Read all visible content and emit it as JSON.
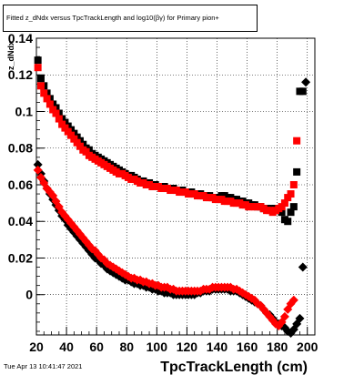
{
  "title": "Fitted z_dNdx versus TpcTrackLength and log10(βγ) for Primary pion+",
  "footer": {
    "timestamp": "Tue Apr 13 10:41:47 2021"
  },
  "colors": {
    "black_series": "#000000",
    "red_series": "#ff0000",
    "grid": "#000000"
  },
  "chart_data": {
    "type": "scatter",
    "title": "Fitted z_dNdx versus TpcTrackLength and log10(βγ) for Primary pion+",
    "xlabel": "TpcTrackLength (cm)",
    "ylabel": "z_dNdx",
    "xlim": [
      20,
      205
    ],
    "ylim": [
      -0.022,
      0.14
    ],
    "x_ticks": [
      20,
      40,
      60,
      80,
      100,
      120,
      140,
      160,
      180,
      200
    ],
    "x_tick_labels": [
      "20",
      "40",
      "60",
      "80",
      "100",
      "120",
      "140",
      "160",
      "180",
      "200"
    ],
    "y_ticks": [
      0,
      0.02,
      0.04,
      0.06,
      0.08,
      0.1,
      0.12,
      0.14
    ],
    "y_tick_labels": [
      "0",
      "0.02",
      "0.04",
      "0.06",
      "0.08",
      "0.1",
      "0.12",
      "0.14"
    ],
    "grid": true,
    "series": [
      {
        "marker": "square",
        "color": "#000000",
        "x": [
          21,
          23,
          25,
          27,
          29,
          31,
          33,
          35,
          37,
          39,
          41,
          43,
          45,
          47,
          49,
          51,
          53,
          55,
          57,
          59,
          61,
          63,
          65,
          67,
          69,
          71,
          73,
          75,
          77,
          79,
          81,
          83,
          85,
          87,
          89,
          91,
          93,
          95,
          97,
          99,
          101,
          103,
          105,
          107,
          109,
          111,
          113,
          115,
          117,
          119,
          121,
          123,
          125,
          127,
          129,
          131,
          133,
          135,
          137,
          139,
          141,
          143,
          145,
          147,
          149,
          151,
          153,
          155,
          157,
          159,
          161,
          163,
          165,
          167,
          169,
          171,
          173,
          175,
          177,
          179,
          181,
          183,
          185,
          187,
          189,
          191,
          193
        ],
        "y": [
          0.128,
          0.118,
          0.114,
          0.11,
          0.107,
          0.104,
          0.102,
          0.099,
          0.096,
          0.094,
          0.092,
          0.09,
          0.088,
          0.086,
          0.084,
          0.082,
          0.08,
          0.079,
          0.077,
          0.076,
          0.075,
          0.074,
          0.073,
          0.072,
          0.071,
          0.07,
          0.069,
          0.068,
          0.067,
          0.066,
          0.065,
          0.065,
          0.064,
          0.063,
          0.062,
          0.062,
          0.061,
          0.061,
          0.06,
          0.06,
          0.059,
          0.059,
          0.059,
          0.058,
          0.058,
          0.058,
          0.057,
          0.057,
          0.057,
          0.056,
          0.056,
          0.056,
          0.055,
          0.055,
          0.055,
          0.054,
          0.054,
          0.054,
          0.053,
          0.053,
          0.053,
          0.054,
          0.054,
          0.053,
          0.053,
          0.052,
          0.052,
          0.051,
          0.051,
          0.05,
          0.05,
          0.049,
          0.049,
          0.048,
          0.048,
          0.047,
          0.047,
          0.047,
          0.047,
          0.047,
          0.046,
          0.045,
          0.041,
          0.04,
          0.045,
          0.048,
          0.067
        ]
      },
      {
        "marker": "square",
        "color": "#ff0000",
        "x": [
          21,
          23,
          25,
          27,
          29,
          31,
          33,
          35,
          37,
          39,
          41,
          43,
          45,
          47,
          49,
          51,
          53,
          55,
          57,
          59,
          61,
          63,
          65,
          67,
          69,
          71,
          73,
          75,
          77,
          79,
          81,
          83,
          85,
          87,
          89,
          91,
          93,
          95,
          97,
          99,
          101,
          103,
          105,
          107,
          109,
          111,
          113,
          115,
          117,
          119,
          121,
          123,
          125,
          127,
          129,
          131,
          133,
          135,
          137,
          139,
          141,
          143,
          145,
          147,
          149,
          151,
          153,
          155,
          157,
          159,
          161,
          163,
          165,
          167,
          169,
          171,
          173,
          175,
          177,
          179,
          181,
          183,
          185,
          187,
          189,
          191,
          193
        ],
        "y": [
          0.124,
          0.114,
          0.11,
          0.107,
          0.104,
          0.101,
          0.099,
          0.096,
          0.093,
          0.091,
          0.089,
          0.087,
          0.085,
          0.083,
          0.081,
          0.079,
          0.078,
          0.076,
          0.075,
          0.074,
          0.073,
          0.072,
          0.071,
          0.07,
          0.069,
          0.068,
          0.067,
          0.066,
          0.066,
          0.065,
          0.064,
          0.063,
          0.063,
          0.062,
          0.061,
          0.061,
          0.06,
          0.06,
          0.059,
          0.059,
          0.059,
          0.058,
          0.058,
          0.058,
          0.057,
          0.057,
          0.057,
          0.056,
          0.056,
          0.056,
          0.055,
          0.055,
          0.055,
          0.054,
          0.054,
          0.054,
          0.053,
          0.053,
          0.053,
          0.052,
          0.052,
          0.052,
          0.051,
          0.051,
          0.051,
          0.05,
          0.05,
          0.05,
          0.049,
          0.049,
          0.048,
          0.048,
          0.048,
          0.048,
          0.048,
          0.047,
          0.046,
          0.046,
          0.045,
          0.046,
          0.047,
          0.048,
          0.05,
          0.053,
          0.055,
          0.06,
          0.084
        ]
      },
      {
        "marker": "square",
        "color": "#000000",
        "x": [
          195,
          197
        ],
        "y": [
          0.111,
          0.111
        ]
      },
      {
        "marker": "diamond",
        "color": "#000000",
        "x": [
          21,
          23,
          25,
          27,
          29,
          31,
          33,
          35,
          37,
          39,
          41,
          43,
          45,
          47,
          49,
          51,
          53,
          55,
          57,
          59,
          61,
          63,
          65,
          67,
          69,
          71,
          73,
          75,
          77,
          79,
          81,
          83,
          85,
          87,
          89,
          91,
          93,
          95,
          97,
          99,
          101,
          103,
          105,
          107,
          109,
          111,
          113,
          115,
          117,
          119,
          121,
          123,
          125,
          127,
          129,
          131,
          133,
          135,
          137,
          139,
          141,
          143,
          145,
          147,
          149,
          151,
          153,
          155,
          157,
          159,
          161,
          163,
          165,
          167,
          169,
          171,
          173,
          175,
          177,
          179,
          181,
          183,
          185,
          187,
          189,
          191,
          193,
          195,
          197,
          199
        ],
        "y": [
          0.071,
          0.066,
          0.062,
          0.058,
          0.055,
          0.052,
          0.049,
          0.046,
          0.043,
          0.041,
          0.038,
          0.036,
          0.034,
          0.032,
          0.03,
          0.028,
          0.026,
          0.024,
          0.022,
          0.02,
          0.019,
          0.017,
          0.016,
          0.014,
          0.013,
          0.012,
          0.011,
          0.01,
          0.009,
          0.008,
          0.008,
          0.007,
          0.006,
          0.006,
          0.005,
          0.005,
          0.004,
          0.004,
          0.003,
          0.003,
          0.002,
          0.002,
          0.001,
          0.001,
          0.001,
          0.0,
          0.0,
          0.0,
          0.0,
          0.0,
          0.0,
          0.0,
          0.0,
          0.001,
          0.001,
          0.002,
          0.002,
          0.002,
          0.003,
          0.003,
          0.003,
          0.003,
          0.003,
          0.003,
          0.002,
          0.002,
          0.002,
          0.001,
          0.0,
          -0.001,
          -0.002,
          -0.003,
          -0.004,
          -0.005,
          -0.006,
          -0.008,
          -0.01,
          -0.011,
          -0.013,
          -0.015,
          -0.016,
          -0.017,
          -0.018,
          -0.02,
          -0.021,
          -0.019,
          -0.016,
          -0.013,
          0.015,
          0.116
        ]
      },
      {
        "marker": "diamond",
        "color": "#ff0000",
        "x": [
          21,
          23,
          25,
          27,
          29,
          31,
          33,
          35,
          37,
          39,
          41,
          43,
          45,
          47,
          49,
          51,
          53,
          55,
          57,
          59,
          61,
          63,
          65,
          67,
          69,
          71,
          73,
          75,
          77,
          79,
          81,
          83,
          85,
          87,
          89,
          91,
          93,
          95,
          97,
          99,
          101,
          103,
          105,
          107,
          109,
          111,
          113,
          115,
          117,
          119,
          121,
          123,
          125,
          127,
          129,
          131,
          133,
          135,
          137,
          139,
          141,
          143,
          145,
          147,
          149,
          151,
          153,
          155,
          157,
          159,
          161,
          163,
          165,
          167,
          169,
          171,
          173,
          175,
          177,
          179,
          181,
          183,
          185,
          187,
          189,
          191
        ],
        "y": [
          0.068,
          0.064,
          0.061,
          0.058,
          0.056,
          0.054,
          0.051,
          0.048,
          0.045,
          0.043,
          0.041,
          0.039,
          0.037,
          0.035,
          0.033,
          0.031,
          0.029,
          0.027,
          0.025,
          0.024,
          0.022,
          0.02,
          0.019,
          0.017,
          0.016,
          0.015,
          0.014,
          0.013,
          0.012,
          0.011,
          0.01,
          0.009,
          0.009,
          0.008,
          0.008,
          0.007,
          0.007,
          0.006,
          0.006,
          0.005,
          0.005,
          0.004,
          0.004,
          0.004,
          0.003,
          0.003,
          0.002,
          0.002,
          0.002,
          0.002,
          0.002,
          0.002,
          0.002,
          0.002,
          0.002,
          0.003,
          0.003,
          0.003,
          0.004,
          0.004,
          0.004,
          0.004,
          0.004,
          0.004,
          0.004,
          0.003,
          0.003,
          0.002,
          0.001,
          0.0,
          -0.001,
          -0.002,
          -0.003,
          -0.005,
          -0.006,
          -0.008,
          -0.01,
          -0.012,
          -0.014,
          -0.016,
          -0.017,
          -0.015,
          -0.012,
          -0.008,
          -0.005,
          -0.003
        ]
      }
    ]
  }
}
